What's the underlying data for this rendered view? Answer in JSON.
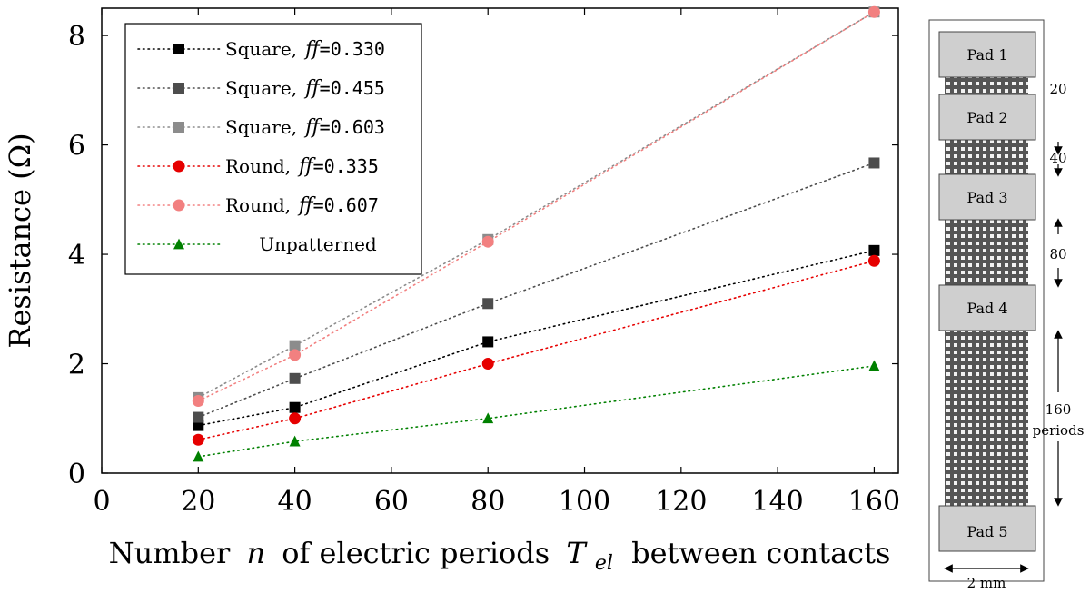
{
  "chart_data": {
    "type": "line",
    "title": "",
    "xlabel_parts": [
      "Number",
      "n",
      "of electric periods",
      "T",
      "el",
      "between contacts"
    ],
    "ylabel": "Resistance (Ω)",
    "xlim": [
      0,
      165
    ],
    "ylim": [
      0,
      8.5
    ],
    "x_ticks": [
      0,
      20,
      40,
      60,
      80,
      100,
      120,
      140,
      160
    ],
    "y_ticks": [
      0,
      2,
      4,
      6,
      8
    ],
    "x": [
      20,
      40,
      80,
      160
    ],
    "legend_position": "top-left",
    "ff_symbol": "ff",
    "series": [
      {
        "name": "Square,",
        "ff": "=0.330",
        "color": "#000000",
        "marker": "square",
        "values": [
          0.87,
          1.2,
          2.4,
          4.07
        ]
      },
      {
        "name": "Square,",
        "ff": "=0.455",
        "color": "#4d4d4d",
        "marker": "square",
        "values": [
          1.02,
          1.73,
          3.1,
          5.67
        ]
      },
      {
        "name": "Square,",
        "ff": "=0.603",
        "color": "#8c8c8c",
        "marker": "square",
        "values": [
          1.38,
          2.33,
          4.27,
          8.43
        ]
      },
      {
        "name": "Round,",
        "ff": "=0.335",
        "color": "#e60000",
        "marker": "circle",
        "values": [
          0.61,
          1.0,
          2.0,
          3.88
        ]
      },
      {
        "name": "Round,",
        "ff": "=0.607",
        "color": "#f28080",
        "marker": "circle",
        "values": [
          1.32,
          2.16,
          4.23,
          8.43
        ]
      },
      {
        "name": "Unpatterned",
        "ff": "",
        "color": "#008000",
        "marker": "triangle",
        "values": [
          0.3,
          0.58,
          1.0,
          1.96
        ]
      }
    ]
  },
  "diagram": {
    "pads": [
      "Pad 1",
      "Pad 2",
      "Pad 3",
      "Pad 4",
      "Pad 5"
    ],
    "spacings": [
      "20",
      "40",
      "80",
      "160"
    ],
    "spacing_unit": "periods",
    "width_label": "2 mm"
  }
}
